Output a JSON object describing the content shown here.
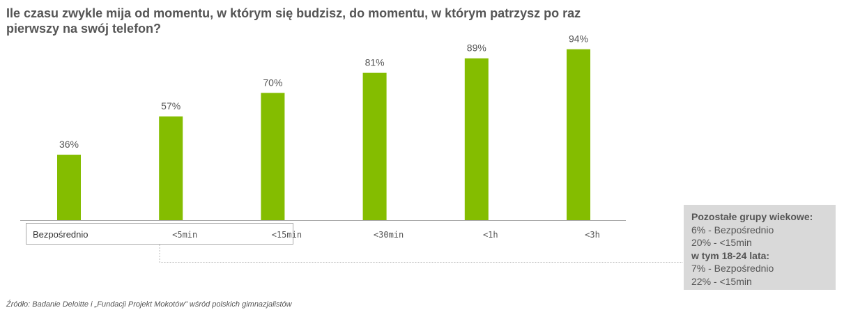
{
  "title": "Ile czasu zwykle mija od momentu, w którym się budzisz, do momentu, w którym patrzysz po raz pierwszy na swój telefon?",
  "source": "Źródło: Badanie Deloitte i „Fundacji Projekt Mokotów” wśród polskich gimnazjalistów",
  "note": {
    "heading": "Pozostałe grupy wiekowe:",
    "line1": "6% - Bezpośrednio",
    "line2": "20% - <15min",
    "subheading": "w tym 18-24 lata:",
    "line3": "7% - Bezpośrednio",
    "line4": "22% - <15min"
  },
  "colors": {
    "bar": "#84bd00",
    "axis": "#aaaaaa",
    "text": "#555555",
    "note_bg": "#d9d9d9"
  },
  "chart_data": {
    "type": "bar",
    "categories": [
      "Bezpośrednio",
      "<5min",
      "<15min",
      "<30min",
      "<1h",
      "<3h"
    ],
    "values": [
      36,
      57,
      70,
      81,
      89,
      94
    ],
    "value_labels": [
      "36%",
      "57%",
      "70%",
      "81%",
      "89%",
      "94%"
    ],
    "ylim": [
      0,
      100
    ],
    "grid": false,
    "highlighted_categories": [
      "Bezpośrednio",
      "<5min",
      "<15min"
    ]
  }
}
